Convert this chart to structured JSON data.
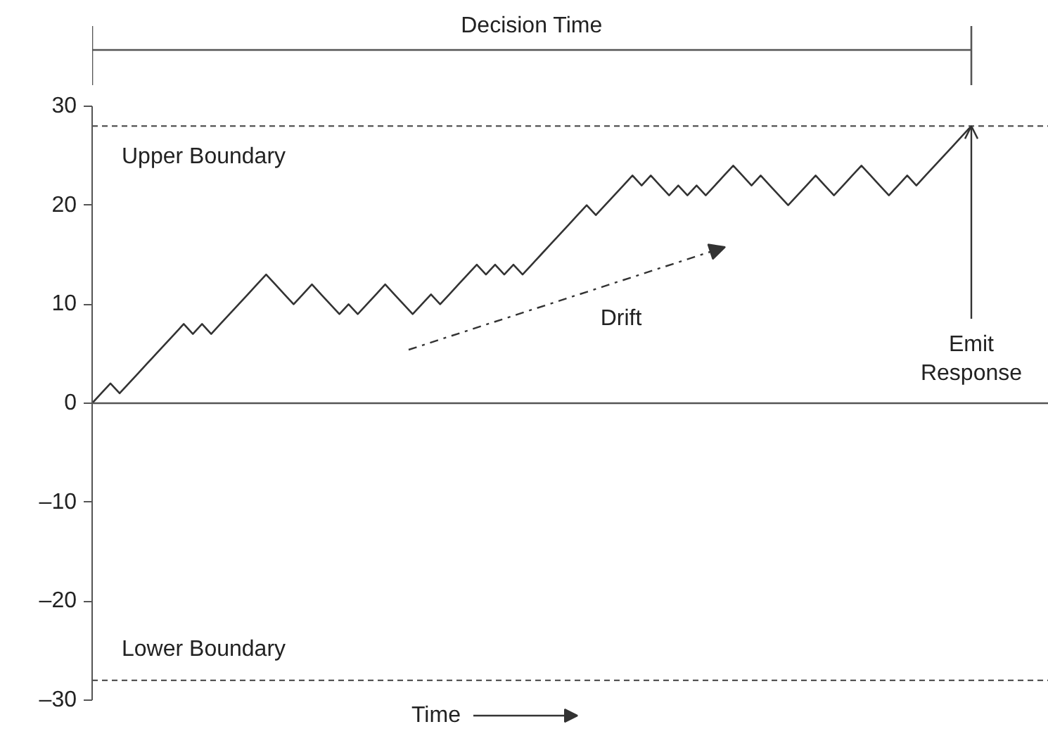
{
  "chart_data": {
    "type": "line",
    "xlabel": "Time",
    "categories": [
      null,
      null,
      null,
      null,
      null,
      null,
      null,
      null,
      null,
      null,
      null,
      null,
      null,
      null,
      null,
      null,
      null,
      null,
      null,
      null,
      null,
      null,
      null,
      null,
      null,
      null,
      null,
      null,
      null,
      null,
      null,
      null,
      null,
      null,
      null,
      null,
      null,
      null,
      null,
      null,
      null,
      null,
      null,
      null,
      null,
      null,
      null,
      null,
      null,
      null,
      null,
      null,
      null,
      null,
      null,
      null,
      null,
      null,
      null,
      null,
      null,
      null,
      null,
      null,
      null,
      null,
      null,
      null,
      null,
      null,
      null,
      null,
      null,
      null,
      null,
      null,
      null,
      null,
      null,
      null,
      null,
      null,
      null,
      null,
      null,
      null,
      null,
      null,
      null,
      null,
      null,
      null,
      null,
      null,
      null,
      null,
      null
    ],
    "values": [
      0,
      1,
      2,
      1,
      2,
      3,
      4,
      5,
      6,
      7,
      8,
      7,
      8,
      7,
      8,
      9,
      10,
      11,
      12,
      13,
      12,
      11,
      10,
      11,
      12,
      11,
      10,
      9,
      10,
      9,
      10,
      11,
      12,
      11,
      10,
      9,
      10,
      11,
      10,
      11,
      12,
      13,
      14,
      13,
      14,
      13,
      14,
      13,
      14,
      15,
      16,
      17,
      18,
      19,
      20,
      19,
      20,
      21,
      22,
      23,
      22,
      23,
      22,
      21,
      22,
      21,
      22,
      21,
      22,
      23,
      24,
      23,
      22,
      23,
      22,
      21,
      20,
      21,
      22,
      23,
      22,
      21,
      22,
      23,
      24,
      23,
      22,
      21,
      22,
      23,
      22,
      23,
      24,
      25,
      26,
      27,
      28
    ],
    "color": "#333333",
    "line_style": "solid",
    "ylim": [
      -30,
      30
    ],
    "yticks": [
      {
        "value": -30,
        "label": "–30"
      },
      {
        "value": -20,
        "label": "–20"
      },
      {
        "value": -10,
        "label": "–10"
      },
      0,
      10,
      20,
      30
    ],
    "ref_lines": [
      {
        "axis": "y",
        "value": 0,
        "line_style": "solid",
        "color": "#555555"
      },
      {
        "axis": "y",
        "value": 28,
        "label": "Upper Boundary",
        "line_style": "dashed",
        "color": "#555555"
      },
      {
        "axis": "y",
        "value": -28,
        "label": "Lower Boundary",
        "line_style": "dashed",
        "color": "#555555"
      }
    ],
    "annotations": [
      "Decision Time",
      "Drift",
      "Emit Response"
    ]
  }
}
